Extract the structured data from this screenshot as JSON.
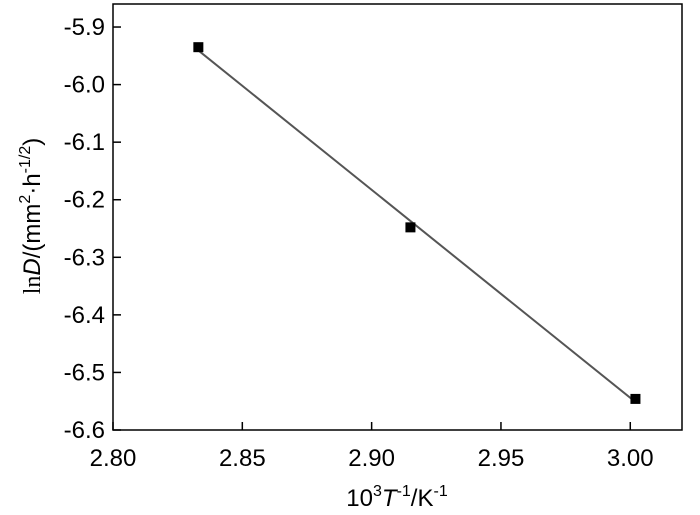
{
  "chart_data": {
    "type": "scatter",
    "title": "",
    "xlabel": {
      "base": "10",
      "exp": "3",
      "var": "T",
      "var_exp": "-1",
      "unit_sep": "/K",
      "unit_exp": "-1"
    },
    "ylabel": {
      "fn": "ln",
      "var": "D",
      "unit_open": "/(mm",
      "unit_exp1": "2",
      "dot": "·h",
      "unit_exp2": "-1/2",
      "unit_close": ")"
    },
    "xlim": [
      2.8,
      3.02
    ],
    "ylim": [
      -6.6,
      -5.86
    ],
    "x_ticks": [
      2.8,
      2.85,
      2.9,
      2.95,
      3.0
    ],
    "x_tick_labels": [
      "2.80",
      "2.85",
      "2.90",
      "2.95",
      "3.00"
    ],
    "y_ticks": [
      -5.9,
      -6.0,
      -6.1,
      -6.2,
      -6.3,
      -6.4,
      -6.5,
      -6.6
    ],
    "y_tick_labels": [
      "-5.9",
      "-6.0",
      "-6.1",
      "-6.2",
      "-6.3",
      "-6.4",
      "-6.5",
      "-6.6"
    ],
    "series": [
      {
        "x": [
          2.833,
          2.915,
          3.002
        ],
        "y": [
          -5.935,
          -6.248,
          -6.546
        ],
        "marker": "square",
        "fit_line": true
      }
    ],
    "grid": false,
    "colors": {
      "marker": "#000000",
      "fit_line": "#555555",
      "axes": "#000000"
    }
  }
}
